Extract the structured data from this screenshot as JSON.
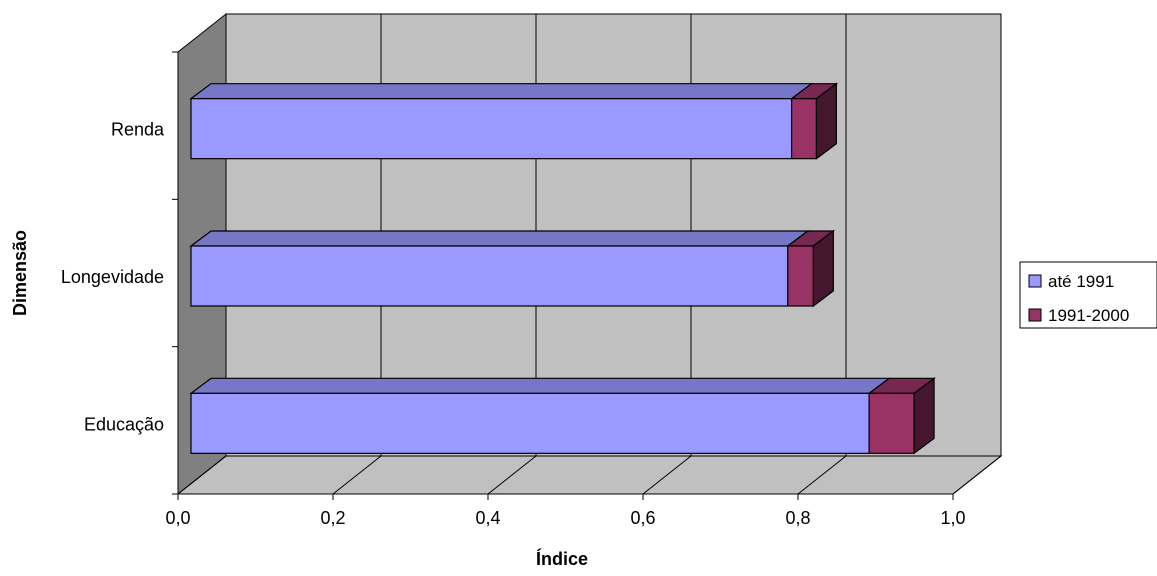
{
  "chart_data": {
    "type": "bar",
    "orientation": "horizontal",
    "stacked": true,
    "three_d": true,
    "categories": [
      "Educação",
      "Longevidade",
      "Renda"
    ],
    "series": [
      {
        "name": "até 1991",
        "values": [
          0.875,
          0.77,
          0.775
        ],
        "color": "#9999ff"
      },
      {
        "name": "1991-2000",
        "values": [
          0.058,
          0.033,
          0.032
        ],
        "color": "#993366"
      }
    ],
    "x_ticks": [
      "0,0",
      "0,2",
      "0,4",
      "0,6",
      "0,8",
      "1,0"
    ],
    "xlim": [
      0,
      1
    ],
    "xlabel": "Índice",
    "ylabel": "Dimensão",
    "grid": true,
    "legend_position": "right",
    "wall_color": "#c0c0c0",
    "side_wall_color": "#808080"
  }
}
